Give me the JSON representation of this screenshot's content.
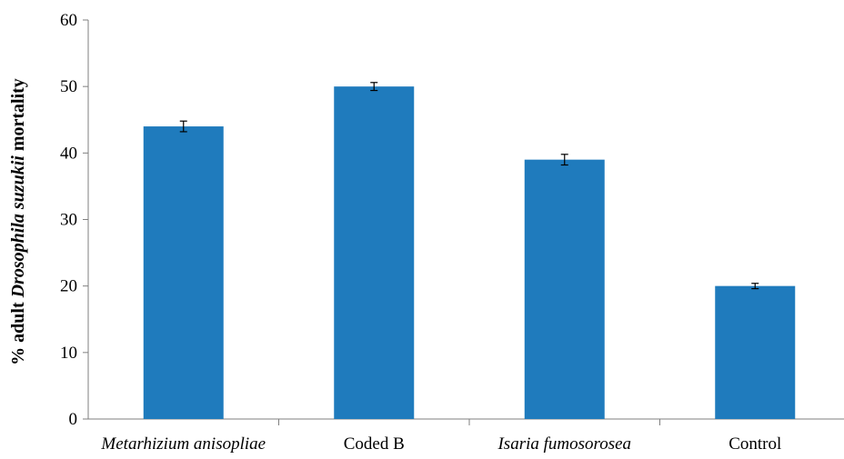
{
  "chart_data": {
    "type": "bar",
    "title": "",
    "categories": [
      "Metarhizium anisopliae",
      "Coded B",
      "Isaria fumosorosea",
      "Control"
    ],
    "category_italic": [
      true,
      false,
      true,
      false
    ],
    "values": [
      44,
      50,
      39,
      20
    ],
    "error": [
      0.8,
      0.6,
      0.8,
      0.4
    ],
    "ylabel": {
      "prefix": "% adult ",
      "italic": "Drosophila suzukii",
      "suffix": " mortality"
    },
    "ylim": [
      0,
      60
    ],
    "yticks": [
      "0",
      "10",
      "20",
      "30",
      "40",
      "50",
      "60"
    ],
    "grid": false,
    "legend": "none",
    "colors": {
      "bar": "#1f7bbd",
      "axis": "#7f7f7f",
      "error_bar": "#000000"
    }
  }
}
